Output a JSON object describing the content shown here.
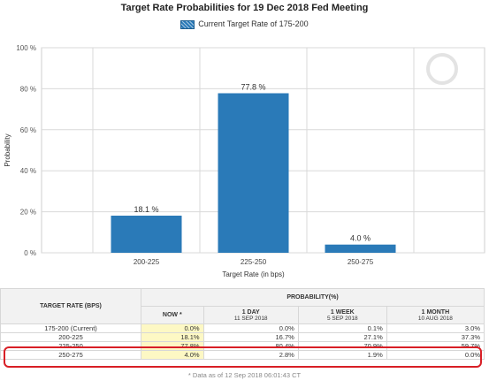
{
  "chart_data": {
    "type": "bar",
    "title": "Target Rate Probabilities for 19 Dec 2018 Fed Meeting",
    "legend": {
      "label": "Current Target Rate of 175-200",
      "placement": "top-center"
    },
    "categories": [
      "200-225",
      "225-250",
      "250-275"
    ],
    "series": [
      {
        "name": "Current Target Rate of 175-200",
        "values": [
          18.1,
          77.8,
          4.0
        ]
      }
    ],
    "data_labels": [
      "18.1 %",
      "77.8 %",
      "4.0 %"
    ],
    "xlabel": "Target Rate (in bps)",
    "ylabel": "Probability",
    "ylim": [
      0,
      100
    ],
    "yticks": [
      0,
      20,
      40,
      60,
      80,
      100
    ],
    "ytick_labels": [
      "0 %",
      "20 %",
      "40 %",
      "60 %",
      "80 %",
      "100 %"
    ],
    "grid": true,
    "colors": {
      "bar": "#2a7ab8",
      "grid": "#d9d9d9"
    }
  },
  "table": {
    "rate_header": "TARGET RATE (BPS)",
    "prob_header": "PROBABILITY(%)",
    "columns": [
      {
        "top": "NOW *",
        "sub": ""
      },
      {
        "top": "1 DAY",
        "sub": "11 SEP 2018"
      },
      {
        "top": "1 WEEK",
        "sub": "5 SEP 2018"
      },
      {
        "top": "1 MONTH",
        "sub": "10 AUG 2018"
      }
    ],
    "rows": [
      {
        "rate": "175-200 (Current)",
        "values": [
          "0.0%",
          "0.0%",
          "0.1%",
          "3.0%"
        ]
      },
      {
        "rate": "200-225",
        "values": [
          "18.1%",
          "16.7%",
          "27.1%",
          "37.3%"
        ]
      },
      {
        "rate": "225-250",
        "values": [
          "77.8%",
          "80.4%",
          "70.9%",
          "59.7%"
        ]
      },
      {
        "rate": "250-275",
        "values": [
          "4.0%",
          "2.8%",
          "1.9%",
          "0.0%"
        ]
      }
    ],
    "highlight_color": "#d81f26"
  },
  "footnote": "* Data as of 12 Sep 2018 06:01:43 CT"
}
